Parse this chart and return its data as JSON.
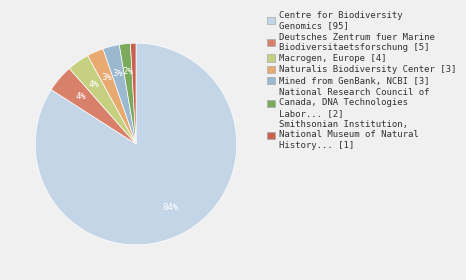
{
  "labels": [
    "Centre for Biodiversity\nGenomics [95]",
    "Deutsches Zentrum fuer Marine\nBiodiversitaetsforschung [5]",
    "Macrogen, Europe [4]",
    "Naturalis Biodiversity Center [3]",
    "Mined from GenBank, NCBI [3]",
    "National Research Council of\nCanada, DNA Technologies\nLabor... [2]",
    "Smithsonian Institution,\nNational Museum of Natural\nHistory... [1]"
  ],
  "values": [
    95,
    5,
    4,
    3,
    3,
    2,
    1
  ],
  "colors": [
    "#c5d5e8",
    "#d9806a",
    "#c5d080",
    "#e8aa70",
    "#9ab8d0",
    "#7aaa5a",
    "#c86050"
  ],
  "background_color": "#f0f0f0",
  "text_color": "#333333",
  "fontsize": 7.0,
  "legend_fontsize": 6.5
}
